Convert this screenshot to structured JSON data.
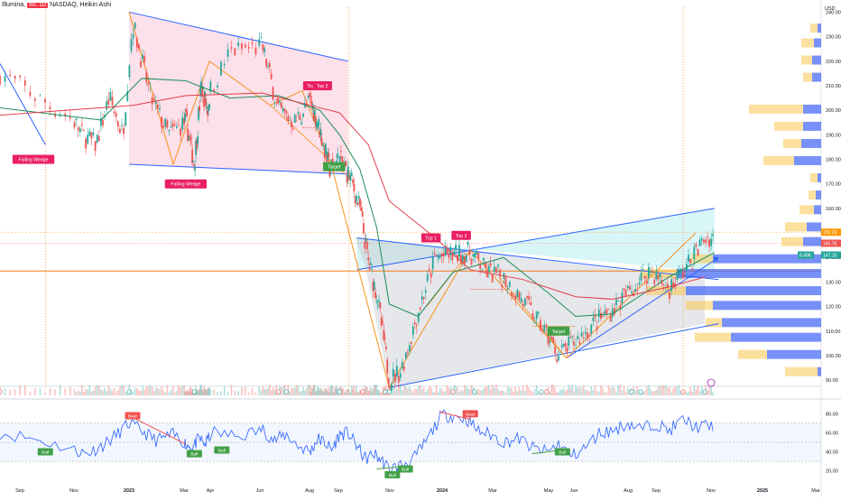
{
  "header": {
    "symbol_prefix": "Illumina,",
    "interval_badge": "Inc. 1D",
    "symbol_suffix": "NASDAQ, Heikin Ashi",
    "currency": "USD"
  },
  "colors": {
    "up_candle": "#26a69a",
    "down_candle": "#ef5350",
    "wedge_line": "#2962ff",
    "zigzag": "#f7931a",
    "ma_green": "#1e8e5a",
    "ma_red": "#e23d4b",
    "rsi_line": "#2962ff",
    "wedge_fill_pink": "#f8bbd0",
    "channel_fill_teal": "#b2ebf2",
    "triangle_fill_gray": "#c7c9d1",
    "vp_blue": "#4a6cf7",
    "vp_yellow": "#f9c74f",
    "label_red": "#e91e63",
    "label_green": "#43a047"
  },
  "chart_data": [
    {
      "type": "candlestick",
      "title": "Illumina, Inc. 1D NASDAQ, Heikin Ashi",
      "currency": "USD",
      "x_axis_labels": [
        "Sep",
        "Nov",
        "2023",
        "Mar",
        "Apr",
        "Jun",
        "Aug",
        "Sep",
        "Nov",
        "2024",
        "Mar",
        "May",
        "Jun",
        "Aug",
        "Sep",
        "Nov",
        "2025",
        "Mar"
      ],
      "y_ticks": [
        90,
        100,
        110,
        120,
        130,
        140,
        150,
        160,
        170,
        180,
        190,
        200,
        210,
        220,
        230,
        240
      ],
      "ylim": [
        86,
        242
      ],
      "price_series": {
        "name": "close",
        "x": [
          "2022-08",
          "2022-08-20",
          "2022-09-10",
          "2022-09-25",
          "2022-10-10",
          "2022-10-25",
          "2022-11-05",
          "2022-11-25",
          "2022-12-15",
          "2023-01-05",
          "2023-01-25",
          "2023-02-10",
          "2023-02-25",
          "2023-03-15",
          "2023-04-05",
          "2023-04-25",
          "2023-05-15",
          "2023-06-05",
          "2023-06-25",
          "2023-07-15",
          "2023-08-05",
          "2023-08-25",
          "2023-09-10",
          "2023-09-25",
          "2023-10-10",
          "2023-10-25",
          "2023-11-01",
          "2023-11-15",
          "2023-12-05",
          "2023-12-25",
          "2024-01-15",
          "2024-02-05",
          "2024-02-25",
          "2024-03-15",
          "2024-04-05",
          "2024-04-25",
          "2024-05-15",
          "2024-06-05",
          "2024-06-25",
          "2024-07-15",
          "2024-08-05",
          "2024-08-25",
          "2024-09-15",
          "2024-10-05",
          "2024-10-25",
          "2024-11-05"
        ],
        "values": [
          215,
          203,
          190,
          186,
          205,
          190,
          236,
          205,
          190,
          196,
          178,
          210,
          200,
          224,
          226,
          200,
          195,
          204,
          192,
          176,
          180,
          172,
          160,
          138,
          125,
          102,
          90,
          94,
          118,
          140,
          141,
          142,
          134,
          132,
          122,
          112,
          100,
          106,
          113,
          119,
          127,
          135,
          127,
          136,
          148,
          148
        ]
      },
      "ma_green": {
        "name": "MA",
        "x": [
          "2022-08",
          "2022-10",
          "2022-11-15",
          "2023-01-05",
          "2023-03-15",
          "2023-04-25",
          "2023-06-25",
          "2023-08-05",
          "2023-09-10",
          "2023-10-10",
          "2023-11-01",
          "2023-12-05",
          "2024-01-15",
          "2024-03-15",
          "2024-05-01",
          "2024-06-05",
          "2024-07-15",
          "2024-09-15",
          "2024-11-05"
        ],
        "values": [
          201,
          196,
          213,
          212,
          205,
          206,
          200,
          190,
          176,
          152,
          121,
          116,
          134,
          140,
          126,
          116,
          117,
          132,
          142
        ]
      },
      "ma_red": {
        "name": "MA",
        "x": [
          "2022-08",
          "2022-11-05",
          "2023-01-05",
          "2023-04-05",
          "2023-06-25",
          "2023-08-05",
          "2023-09-25",
          "2023-11-01",
          "2023-12-25",
          "2024-02-05",
          "2024-04-05",
          "2024-06-05",
          "2024-07-15",
          "2024-09-15",
          "2024-10-25"
        ],
        "values": [
          198,
          202,
          206,
          207,
          201,
          199,
          186,
          163,
          148,
          135,
          131,
          124,
          123,
          128,
          132
        ]
      },
      "current_price_labels": [
        "150.29",
        "145.76",
        "147.10"
      ],
      "candle_counter_label": "8.49K",
      "annotations": [
        "Falling Wedge",
        "Falling Wedge",
        "Top 1",
        "Top 2",
        "Target",
        "Top 1",
        "Top 2",
        "Target"
      ]
    },
    {
      "type": "line",
      "title": "",
      "y_ticks": [
        20,
        40,
        60,
        80
      ],
      "ylim": [
        14,
        86
      ],
      "series": [
        {
          "x": [
            "2022-08",
            "2022-08-15",
            "2022-09-01",
            "2022-09-15",
            "2022-10-01",
            "2022-10-15",
            "2022-11-01",
            "2022-11-15",
            "2022-12-01",
            "2022-12-20",
            "2023-01-05",
            "2023-01-20",
            "2023-02-05",
            "2023-02-20",
            "2023-03-05",
            "2023-03-20",
            "2023-04-05",
            "2023-04-20",
            "2023-05-05",
            "2023-05-20",
            "2023-06-05",
            "2023-06-20",
            "2023-07-05",
            "2023-07-20",
            "2023-08-05",
            "2023-08-20",
            "2023-09-05",
            "2023-09-20",
            "2023-10-05",
            "2023-10-20",
            "2023-11-01",
            "2023-11-15",
            "2023-12-01",
            "2023-12-15",
            "2024-01-01",
            "2024-01-15",
            "2024-02-01",
            "2024-02-15",
            "2024-03-01",
            "2024-03-15",
            "2024-04-01",
            "2024-04-15",
            "2024-05-01",
            "2024-05-15",
            "2024-06-01",
            "2024-06-15",
            "2024-07-01",
            "2024-07-15",
            "2024-08-01",
            "2024-08-15",
            "2024-09-01",
            "2024-09-15",
            "2024-10-01",
            "2024-10-15",
            "2024-11-05"
          ],
          "values": [
            60,
            54,
            42,
            38,
            46,
            55,
            70,
            62,
            52,
            58,
            48,
            44,
            54,
            48,
            60,
            56,
            64,
            52,
            58,
            46,
            40,
            54,
            50,
            42,
            58,
            60,
            46,
            32,
            38,
            30,
            22,
            26,
            34,
            52,
            78,
            78,
            74,
            62,
            58,
            50,
            54,
            44,
            40,
            48,
            36,
            44,
            60,
            62,
            70,
            64,
            70,
            62,
            74,
            66,
            68
          ]
        }
      ],
      "annotations": [
        "Bear",
        "Bull",
        "Bull",
        "Bull",
        "Bull",
        "Bull",
        "Bear",
        "Bull"
      ]
    }
  ]
}
